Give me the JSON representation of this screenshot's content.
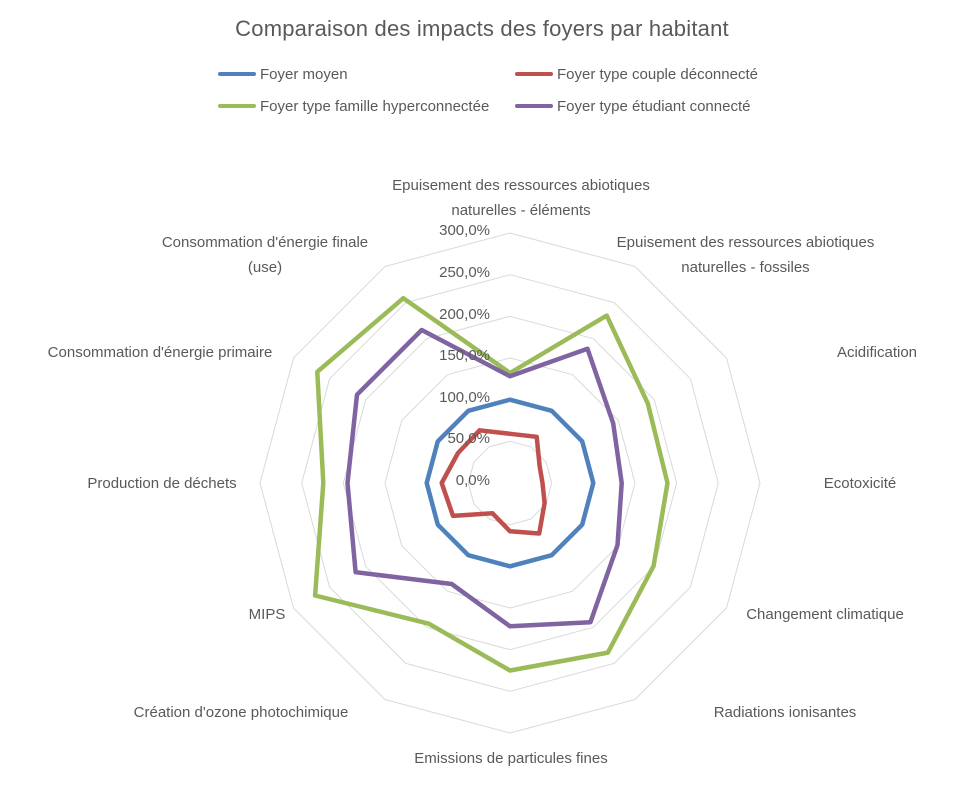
{
  "title": "Comparaison des impacts des foyers par habitant",
  "chart_data": {
    "type": "radar",
    "title": "Comparaison des impacts des foyers par habitant",
    "categories": [
      "Epuisement des ressources abiotiques naturelles - éléments",
      "Epuisement des ressources abiotiques naturelles - fossiles",
      "Acidification",
      "Ecotoxicité",
      "Changement climatique",
      "Radiations ionisantes",
      "Emissions de particules fines",
      "Création d'ozone photochimique",
      "MIPS",
      "Production de déchets",
      "Consommation d'énergie primaire",
      "Consommation d'énergie finale (use)"
    ],
    "series": [
      {
        "name": "Foyer moyen",
        "color": "#4F81BD",
        "values": [
          100,
          100,
          100,
          100,
          100,
          100,
          100,
          100,
          100,
          100,
          100,
          100
        ]
      },
      {
        "name": "Foyer type couple déconnecté",
        "color": "#C0504D",
        "values": [
          59,
          64,
          41,
          39,
          48,
          70,
          58,
          42,
          79,
          82,
          72,
          73
        ]
      },
      {
        "name": "Foyer type famille hyperconnectée",
        "color": "#9BBB59",
        "values": [
          132,
          232,
          191,
          189,
          199,
          235,
          225,
          195,
          270,
          224,
          267,
          256
        ]
      },
      {
        "name": "Foyer type étudiant connecté",
        "color": "#8064A2",
        "values": [
          128,
          186,
          143,
          134,
          149,
          193,
          172,
          140,
          214,
          195,
          212,
          212
        ]
      }
    ],
    "radial_axis": {
      "min": 0,
      "max": 300,
      "step": 50,
      "unit": "%",
      "tick_labels": [
        "0,0%",
        "50,0%",
        "100,0%",
        "150,0%",
        "200,0%",
        "250,0%",
        "300,0%"
      ]
    },
    "grid": "on",
    "gridline_color": "#D9D9D9",
    "text_color": "#595959",
    "legend_position": "top"
  }
}
